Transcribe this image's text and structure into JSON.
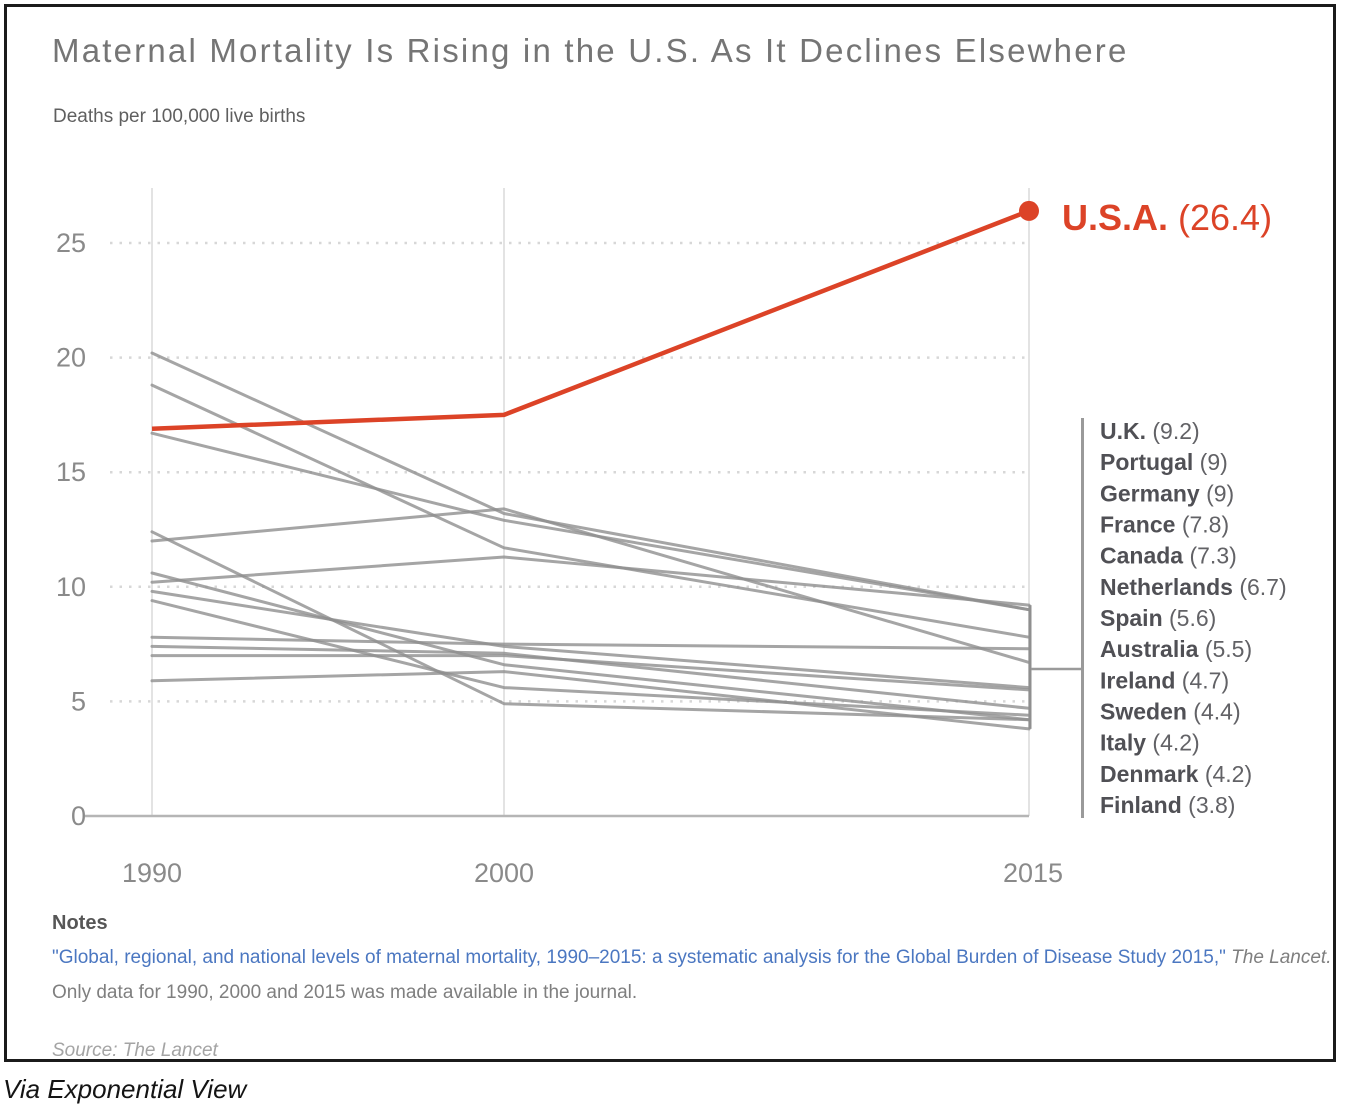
{
  "card": {
    "title": "Maternal Mortality Is Rising in the U.S. As It Declines Elsewhere",
    "subtitle": "Deaths per 100,000 live births"
  },
  "chart_data": {
    "type": "line",
    "x": [
      1990,
      2000,
      2015
    ],
    "x_tick_labels": [
      "1990",
      "2000",
      "2015"
    ],
    "y_ticks": [
      0,
      5,
      10,
      15,
      20,
      25
    ],
    "ylim": [
      0,
      27.5
    ],
    "grid": "horizontal-dotted",
    "legend_position": "right",
    "highlight_series": {
      "name": "U.S.A.",
      "values": [
        16.9,
        17.5,
        26.4
      ],
      "label_name": "U.S.A.",
      "label_value": "(26.4)",
      "color": "#dc4327"
    },
    "series": [
      {
        "name": "U.K.",
        "values": [
          10.2,
          11.3,
          9.2
        ],
        "legend_value": "(9.2)"
      },
      {
        "name": "Portugal",
        "values": [
          20.2,
          13.2,
          9.0
        ],
        "legend_value": "(9)"
      },
      {
        "name": "Germany",
        "values": [
          16.7,
          12.9,
          9.0
        ],
        "legend_value": "(9)"
      },
      {
        "name": "France",
        "values": [
          18.8,
          11.7,
          7.8
        ],
        "legend_value": "(7.8)"
      },
      {
        "name": "Canada",
        "values": [
          7.8,
          7.5,
          7.3
        ],
        "legend_value": "(7.3)"
      },
      {
        "name": "Netherlands",
        "values": [
          12.0,
          13.4,
          6.7
        ],
        "legend_value": "(6.7)"
      },
      {
        "name": "Spain",
        "values": [
          9.8,
          7.4,
          5.6
        ],
        "legend_value": "(5.6)"
      },
      {
        "name": "Australia",
        "values": [
          7.0,
          7.0,
          5.5
        ],
        "legend_value": "(5.5)"
      },
      {
        "name": "Ireland",
        "values": [
          7.4,
          7.1,
          4.7
        ],
        "legend_value": "(4.7)"
      },
      {
        "name": "Sweden",
        "values": [
          9.4,
          5.6,
          4.4
        ],
        "legend_value": "(4.4)"
      },
      {
        "name": "Italy",
        "values": [
          10.6,
          6.6,
          4.2
        ],
        "legend_value": "(4.2)"
      },
      {
        "name": "Denmark",
        "values": [
          12.4,
          4.9,
          4.2
        ],
        "legend_value": "(4.2)"
      },
      {
        "name": "Finland",
        "values": [
          5.9,
          6.3,
          3.8
        ],
        "legend_value": "(3.8)"
      }
    ]
  },
  "notes": {
    "label": "Notes",
    "link_text": "\"Global, regional, and national levels of maternal mortality, 1990–2015: a systematic analysis for the Global Burden of Disease Study 2015,\"",
    "journal": "The Lancet.",
    "line2": "Only data for 1990, 2000 and 2015 was made available in the journal.",
    "source": "Source: The Lancet"
  },
  "attribution": "Via Exponential View",
  "colors": {
    "highlight_red": "#dc4327",
    "gray_line": "#8f8f8f",
    "axis_label": "#8a8a8a",
    "grid_vertical": "#e3e3e3",
    "grid_dotted": "#d7d7d7",
    "baseline": "#b5b5b5",
    "legend_name": "#505055",
    "legend_value": "#626266",
    "title_gray": "#757575",
    "link_blue": "#4b77c1",
    "border_dark": "#1b1b1b"
  }
}
